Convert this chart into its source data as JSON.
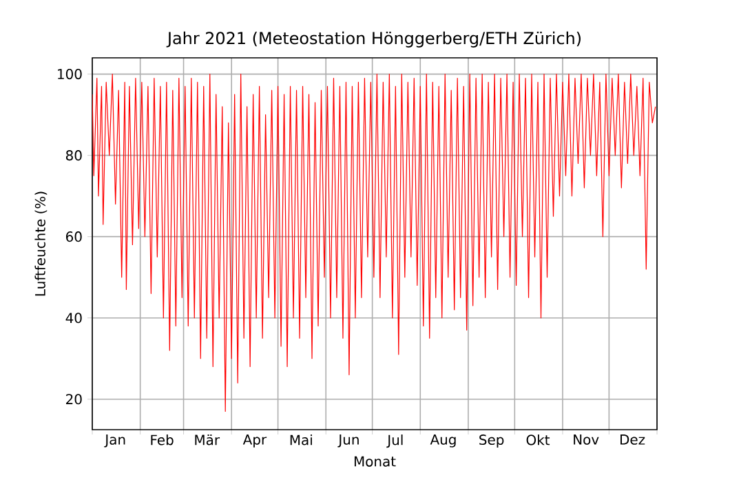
{
  "chart_data": {
    "type": "line",
    "title": "Jahr 2021   (Meteostation Hönggerberg/ETH Zürich)",
    "xlabel": "Monat",
    "ylabel": "Luftfeuchte (%)",
    "grid": true,
    "xlim": [
      "2021-01-01",
      "2022-01-01"
    ],
    "ylim": [
      12.5,
      104
    ],
    "xticks": [
      {
        "value": "2021-01-01",
        "label": null
      },
      {
        "value": "2021-01-16",
        "label": "Jan"
      },
      {
        "value": "2021-02-01",
        "label": null
      },
      {
        "value": "2021-02-15",
        "label": "Feb"
      },
      {
        "value": "2021-03-01",
        "label": null
      },
      {
        "value": "2021-03-16",
        "label": "Mär"
      },
      {
        "value": "2021-04-01",
        "label": null
      },
      {
        "value": "2021-04-16",
        "label": "Apr"
      },
      {
        "value": "2021-05-01",
        "label": null
      },
      {
        "value": "2021-05-16",
        "label": "Mai"
      },
      {
        "value": "2021-06-01",
        "label": null
      },
      {
        "value": "2021-06-16",
        "label": "Jun"
      },
      {
        "value": "2021-07-01",
        "label": null
      },
      {
        "value": "2021-07-16",
        "label": "Jul"
      },
      {
        "value": "2021-08-01",
        "label": null
      },
      {
        "value": "2021-08-16",
        "label": "Aug"
      },
      {
        "value": "2021-09-01",
        "label": null
      },
      {
        "value": "2021-09-16",
        "label": "Sep"
      },
      {
        "value": "2021-10-01",
        "label": null
      },
      {
        "value": "2021-10-16",
        "label": "Okt"
      },
      {
        "value": "2021-11-01",
        "label": null
      },
      {
        "value": "2021-11-16",
        "label": "Nov"
      },
      {
        "value": "2021-12-01",
        "label": null
      },
      {
        "value": "2021-12-16",
        "label": "Dez"
      },
      {
        "value": "2022-01-01",
        "label": null
      }
    ],
    "yticks": [
      20,
      40,
      60,
      80,
      100
    ],
    "series": [
      {
        "color": "#ff0000",
        "x": [
          "2021-01-01",
          "2021-01-02",
          "2021-01-04",
          "2021-01-05",
          "2021-01-07",
          "2021-01-08",
          "2021-01-10",
          "2021-01-12",
          "2021-01-14",
          "2021-01-16",
          "2021-01-18",
          "2021-01-20",
          "2021-01-22",
          "2021-01-23",
          "2021-01-25",
          "2021-01-27",
          "2021-01-29",
          "2021-01-31",
          "2021-02-02",
          "2021-02-04",
          "2021-02-06",
          "2021-02-08",
          "2021-02-10",
          "2021-02-12",
          "2021-02-14",
          "2021-02-16",
          "2021-02-18",
          "2021-02-20",
          "2021-02-22",
          "2021-02-24",
          "2021-02-26",
          "2021-02-28",
          "2021-03-02",
          "2021-03-04",
          "2021-03-06",
          "2021-03-08",
          "2021-03-10",
          "2021-03-12",
          "2021-03-14",
          "2021-03-16",
          "2021-03-18",
          "2021-03-20",
          "2021-03-22",
          "2021-03-24",
          "2021-03-26",
          "2021-03-28",
          "2021-03-30",
          "2021-04-01",
          "2021-04-03",
          "2021-04-05",
          "2021-04-07",
          "2021-04-09",
          "2021-04-11",
          "2021-04-13",
          "2021-04-15",
          "2021-04-17",
          "2021-04-19",
          "2021-04-21",
          "2021-04-23",
          "2021-04-25",
          "2021-04-27",
          "2021-04-29",
          "2021-05-01",
          "2021-05-03",
          "2021-05-05",
          "2021-05-07",
          "2021-05-09",
          "2021-05-11",
          "2021-05-13",
          "2021-05-15",
          "2021-05-17",
          "2021-05-19",
          "2021-05-21",
          "2021-05-23",
          "2021-05-25",
          "2021-05-27",
          "2021-05-29",
          "2021-05-31",
          "2021-06-02",
          "2021-06-04",
          "2021-06-06",
          "2021-06-08",
          "2021-06-10",
          "2021-06-12",
          "2021-06-14",
          "2021-06-16",
          "2021-06-18",
          "2021-06-20",
          "2021-06-22",
          "2021-06-24",
          "2021-06-26",
          "2021-06-28",
          "2021-06-30",
          "2021-07-02",
          "2021-07-04",
          "2021-07-06",
          "2021-07-08",
          "2021-07-10",
          "2021-07-12",
          "2021-07-14",
          "2021-07-16",
          "2021-07-18",
          "2021-07-20",
          "2021-07-22",
          "2021-07-24",
          "2021-07-26",
          "2021-07-28",
          "2021-07-30",
          "2021-08-01",
          "2021-08-03",
          "2021-08-05",
          "2021-08-07",
          "2021-08-09",
          "2021-08-11",
          "2021-08-13",
          "2021-08-15",
          "2021-08-17",
          "2021-08-19",
          "2021-08-21",
          "2021-08-23",
          "2021-08-25",
          "2021-08-27",
          "2021-08-29",
          "2021-08-31",
          "2021-09-02",
          "2021-09-04",
          "2021-09-06",
          "2021-09-08",
          "2021-09-10",
          "2021-09-12",
          "2021-09-14",
          "2021-09-16",
          "2021-09-18",
          "2021-09-20",
          "2021-09-22",
          "2021-09-24",
          "2021-09-26",
          "2021-09-28",
          "2021-09-30",
          "2021-10-02",
          "2021-10-04",
          "2021-10-06",
          "2021-10-08",
          "2021-10-10",
          "2021-10-12",
          "2021-10-14",
          "2021-10-16",
          "2021-10-18",
          "2021-10-20",
          "2021-10-22",
          "2021-10-24",
          "2021-10-26",
          "2021-10-28",
          "2021-10-30",
          "2021-11-01",
          "2021-11-03",
          "2021-11-05",
          "2021-11-07",
          "2021-11-09",
          "2021-11-11",
          "2021-11-13",
          "2021-11-15",
          "2021-11-17",
          "2021-11-19",
          "2021-11-21",
          "2021-11-23",
          "2021-11-25",
          "2021-11-27",
          "2021-11-29",
          "2021-12-01",
          "2021-12-03",
          "2021-12-05",
          "2021-12-07",
          "2021-12-09",
          "2021-12-11",
          "2021-12-13",
          "2021-12-15",
          "2021-12-17",
          "2021-12-19",
          "2021-12-21",
          "2021-12-23",
          "2021-12-25",
          "2021-12-27",
          "2021-12-29",
          "2021-12-31"
        ],
        "values": [
          95,
          75,
          99,
          70,
          97,
          63,
          98,
          80,
          100,
          68,
          96,
          50,
          98,
          47,
          97,
          58,
          99,
          62,
          98,
          60,
          97,
          46,
          99,
          55,
          97,
          40,
          98,
          32,
          96,
          38,
          99,
          45,
          97,
          38,
          99,
          40,
          98,
          30,
          97,
          35,
          100,
          28,
          95,
          40,
          92,
          17,
          88,
          30,
          95,
          24,
          100,
          35,
          92,
          28,
          95,
          40,
          97,
          35,
          90,
          45,
          96,
          40,
          97,
          33,
          95,
          28,
          97,
          40,
          96,
          35,
          97,
          45,
          95,
          30,
          93,
          38,
          96,
          50,
          97,
          40,
          99,
          45,
          97,
          35,
          98,
          26,
          97,
          40,
          98,
          45,
          99,
          55,
          98,
          50,
          100,
          45,
          98,
          55,
          100,
          40,
          97,
          31,
          100,
          50,
          98,
          55,
          99,
          48,
          97,
          38,
          100,
          35,
          98,
          45,
          97,
          40,
          100,
          50,
          96,
          42,
          99,
          45,
          97,
          37,
          100,
          43,
          99,
          50,
          100,
          45,
          98,
          55,
          100,
          47,
          99,
          60,
          100,
          50,
          98,
          48,
          100,
          60,
          99,
          45,
          100,
          55,
          98,
          40,
          100,
          50,
          99,
          65,
          100,
          70,
          98,
          75,
          100,
          70,
          99,
          78,
          100,
          72,
          99,
          80,
          100,
          75,
          98,
          60,
          100,
          75,
          99,
          80,
          100,
          72,
          98,
          78,
          100,
          80,
          97,
          75,
          99,
          52,
          98,
          88,
          92
        ]
      }
    ]
  }
}
